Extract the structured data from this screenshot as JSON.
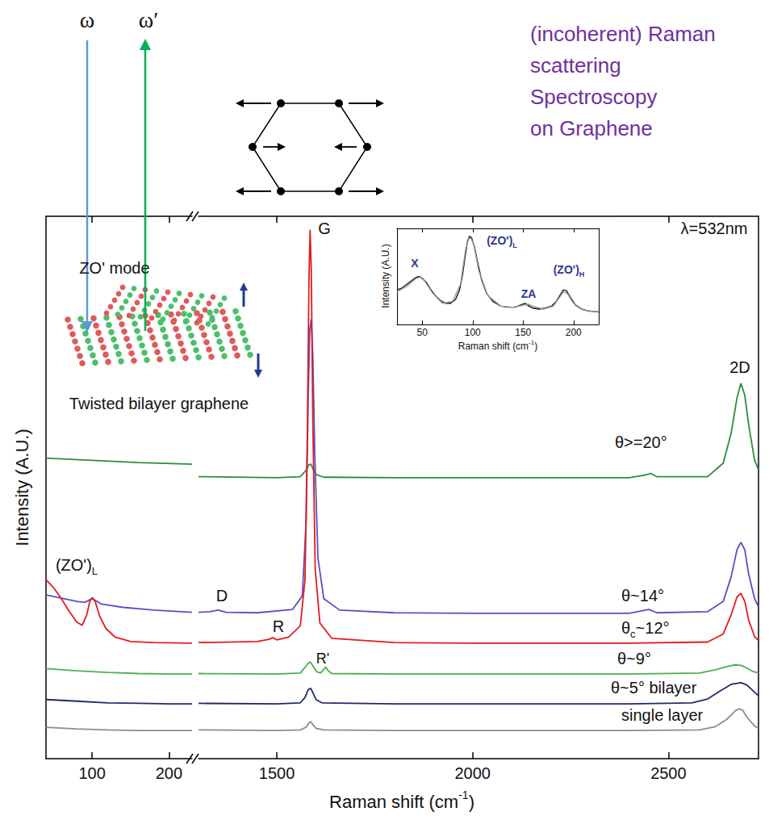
{
  "figure": {
    "incident": "ω",
    "scattered": "ω′",
    "caption": [
      "(incoherent) Raman",
      "scattering",
      "Spectroscopy",
      "on Graphene"
    ],
    "mode_label": "ZO' mode",
    "sample_label": "Twisted bilayer graphene"
  },
  "chart_data": [
    {
      "type": "line",
      "y_label": "Intensity (A.U.)",
      "xlim": [
        40,
        230
      ],
      "xticks": [
        100,
        200
      ],
      "ylim": [
        0,
        100
      ],
      "tick_labels": "x",
      "grid": false,
      "annotations": [
        {
          "text": [
            {
              "t": "(ZO')"
            },
            {
              "t": "L",
              "sub": true
            }
          ]
        }
      ],
      "series": [
        {
          "color": "#2e8b3c",
          "x": [
            40,
            100,
            160,
            230
          ],
          "values": [
            55.4,
            55.0,
            54.6,
            54.3
          ]
        },
        {
          "color": "#5a4fc6",
          "x": [
            40,
            60,
            80,
            90,
            97,
            100,
            104,
            112,
            140,
            180,
            230
          ],
          "values": [
            30.2,
            29.6,
            29.0,
            28.8,
            29.3,
            29.5,
            29.2,
            28.5,
            27.9,
            27.4,
            27.0
          ]
        },
        {
          "color": "#e41a1c",
          "x": [
            40,
            50,
            60,
            70,
            80,
            87,
            93,
            97,
            100,
            104,
            110,
            118,
            130,
            150,
            180,
            230
          ],
          "values": [
            33,
            31.5,
            29.5,
            27.2,
            25.2,
            24.6,
            26.5,
            29,
            29.7,
            29.0,
            26.2,
            24,
            22.4,
            21.6,
            21.4,
            21.3
          ]
        },
        {
          "color": "#4caf50",
          "x": [
            40,
            80,
            120,
            160,
            200,
            230
          ],
          "values": [
            16.6,
            16.2,
            15.9,
            15.7,
            15.6,
            15.6
          ]
        },
        {
          "color": "#1f2a6b",
          "x": [
            40,
            80,
            120,
            160,
            200,
            230
          ],
          "values": [
            10.9,
            10.6,
            10.3,
            10.2,
            10.1,
            10.1
          ]
        },
        {
          "color": "#8c8c8c",
          "x": [
            40,
            80,
            120,
            160,
            200,
            230
          ],
          "values": [
            5.8,
            5.5,
            5.3,
            5.2,
            5.2,
            5.2
          ]
        }
      ]
    },
    {
      "type": "line",
      "x_label": [
        {
          "t": "Raman shift (cm"
        },
        {
          "t": "-1",
          "sup": true
        },
        {
          "t": ")"
        }
      ],
      "xlim": [
        1300,
        2730
      ],
      "xticks": [
        1500,
        2000,
        2500
      ],
      "ylim": [
        0,
        100
      ],
      "tick_labels": "x",
      "grid": false,
      "annotations": [
        {
          "text": "G"
        },
        {
          "text": "2D"
        },
        {
          "text": "D"
        },
        {
          "text": "R"
        },
        {
          "text": "R'"
        },
        {
          "text": "λ=532nm"
        }
      ],
      "series": [
        {
          "name": "θ>=20°",
          "color": "#2e8b3c",
          "x": [
            1300,
            1500,
            1560,
            1575,
            1582,
            1587,
            1592,
            1600,
            1620,
            1800,
            2000,
            2400,
            2440,
            2455,
            2470,
            2600,
            2640,
            2660,
            2675,
            2685,
            2695,
            2705,
            2720,
            2730
          ],
          "values": [
            52.0,
            51.8,
            52.0,
            53.2,
            54.2,
            54.3,
            53.5,
            52.4,
            51.9,
            51.8,
            51.8,
            51.8,
            52.3,
            52.6,
            52.0,
            52.0,
            54.5,
            60,
            66.5,
            69.2,
            67,
            61.5,
            55,
            53.3
          ]
        },
        {
          "name": "θ~14°",
          "color": "#5a4fc6",
          "x": [
            1300,
            1330,
            1350,
            1370,
            1450,
            1540,
            1565,
            1575,
            1580,
            1584,
            1588,
            1592,
            1597,
            1605,
            1620,
            1660,
            1800,
            2000,
            2400,
            2450,
            2470,
            2600,
            2640,
            2660,
            2675,
            2685,
            2695,
            2705,
            2720,
            2730
          ],
          "values": [
            27.0,
            27.1,
            27.4,
            27.0,
            26.9,
            27.5,
            30,
            44,
            66,
            79,
            81,
            74,
            56,
            37,
            29.5,
            27.4,
            26.9,
            26.8,
            26.8,
            27.5,
            26.9,
            27.1,
            29,
            33.5,
            38.5,
            39.9,
            38.5,
            34,
            29.5,
            28
          ]
        },
        {
          "name": [
            {
              "t": "θ"
            },
            {
              "t": "c",
              "sub": true
            },
            {
              "t": "~12°"
            }
          ],
          "color": "#e41a1c",
          "x": [
            1300,
            1450,
            1480,
            1490,
            1500,
            1530,
            1560,
            1572,
            1578,
            1582,
            1585,
            1588,
            1592,
            1598,
            1610,
            1640,
            1800,
            2000,
            2400,
            2600,
            2640,
            2660,
            2675,
            2685,
            2695,
            2705,
            2720,
            2730
          ],
          "values": [
            21.4,
            21.6,
            22.0,
            22.3,
            21.9,
            22.4,
            24.5,
            33,
            60,
            88,
            97.5,
            90,
            62,
            35,
            25,
            22.2,
            21.4,
            21.3,
            21.3,
            21.5,
            23,
            26.5,
            29.8,
            30.5,
            29.0,
            25.5,
            22.5,
            21.8
          ]
        },
        {
          "name": "θ~9°",
          "color": "#4caf50",
          "x": [
            1300,
            1500,
            1560,
            1573,
            1580,
            1586,
            1593,
            1602,
            1612,
            1620,
            1625,
            1630,
            1640,
            1800,
            2000,
            2400,
            2580,
            2620,
            2650,
            2670,
            2685,
            2700,
            2715,
            2730
          ],
          "values": [
            15.7,
            15.6,
            15.8,
            16.9,
            17.6,
            17.8,
            17.0,
            16.0,
            15.8,
            16.5,
            16.9,
            16.3,
            15.7,
            15.6,
            15.6,
            15.6,
            15.8,
            16.4,
            17.0,
            17.3,
            17.2,
            16.7,
            16.1,
            15.8
          ]
        },
        {
          "name": "θ~5° bilayer",
          "color": "#1f2a6b",
          "x": [
            1300,
            1500,
            1560,
            1572,
            1580,
            1586,
            1592,
            1600,
            1615,
            1800,
            2000,
            2400,
            2560,
            2600,
            2630,
            2660,
            2685,
            2700,
            2715,
            2730
          ],
          "values": [
            10.2,
            10.1,
            10.3,
            11.3,
            12.7,
            13.0,
            12.2,
            10.9,
            10.3,
            10.1,
            10.1,
            10.1,
            10.3,
            11.0,
            12.4,
            13.7,
            14.0,
            13.6,
            12.6,
            11.6
          ]
        },
        {
          "name": "single layer",
          "color": "#8c8c8c",
          "x": [
            1300,
            1500,
            1560,
            1575,
            1582,
            1587,
            1592,
            1600,
            1620,
            1800,
            2000,
            2400,
            2580,
            2620,
            2650,
            2670,
            2680,
            2690,
            2700,
            2720,
            2730
          ],
          "values": [
            5.3,
            5.2,
            5.3,
            5.8,
            6.6,
            6.8,
            6.3,
            5.6,
            5.3,
            5.2,
            5.2,
            5.2,
            5.3,
            5.9,
            7.3,
            8.8,
            9.2,
            8.9,
            7.7,
            6.0,
            5.6
          ]
        }
      ]
    },
    {
      "type": "line",
      "x_label": [
        {
          "t": "Raman shift (cm"
        },
        {
          "t": "-1",
          "sup": true
        },
        {
          "t": ")"
        }
      ],
      "y_label": "Intensity (A.U.)",
      "xlim": [
        25,
        225
      ],
      "xticks": [
        50,
        100,
        150,
        200
      ],
      "ylim": [
        0,
        100
      ],
      "tick_labels": "x",
      "grid": false,
      "annotations": [
        {
          "text": "X"
        },
        {
          "text": [
            {
              "t": "(ZO')"
            },
            {
              "t": "L",
              "sub": true
            }
          ]
        },
        {
          "text": "ZA"
        },
        {
          "text": [
            {
              "t": "(ZO')"
            },
            {
              "t": "H",
              "sub": true
            }
          ]
        }
      ],
      "series": [
        {
          "color": "#111111",
          "x": [
            25,
            30,
            35,
            40,
            44,
            47,
            50,
            54,
            58,
            63,
            68,
            73,
            78,
            83,
            87,
            90,
            93,
            95,
            97,
            99,
            102,
            105,
            109,
            114,
            120,
            128,
            136,
            142,
            147,
            152,
            156,
            160,
            166,
            172,
            178,
            183,
            187,
            190,
            193,
            197,
            202,
            208,
            215,
            225
          ],
          "values": [
            36,
            38,
            42,
            46,
            49,
            50,
            48,
            44,
            37,
            30,
            25,
            22,
            22,
            26,
            36,
            52,
            74,
            87,
            92,
            90,
            80,
            64,
            46,
            32,
            24,
            19,
            18,
            18,
            20,
            22,
            19,
            17,
            16,
            17,
            19,
            24,
            31,
            36,
            35,
            28,
            20,
            16,
            14,
            13
          ]
        },
        {
          "color": "#9a9a9a",
          "x": [
            25,
            35,
            44,
            48,
            52,
            60,
            70,
            80,
            88,
            93,
            96,
            98,
            101,
            106,
            115,
            128,
            140,
            150,
            155,
            160,
            170,
            180,
            186,
            190,
            194,
            200,
            210,
            225
          ],
          "values": [
            34,
            40,
            48,
            49,
            46,
            33,
            22,
            24,
            42,
            78,
            89,
            90,
            84,
            56,
            30,
            19,
            18,
            20,
            21,
            19,
            16,
            19,
            28,
            34,
            32,
            22,
            15,
            13
          ]
        }
      ]
    }
  ]
}
